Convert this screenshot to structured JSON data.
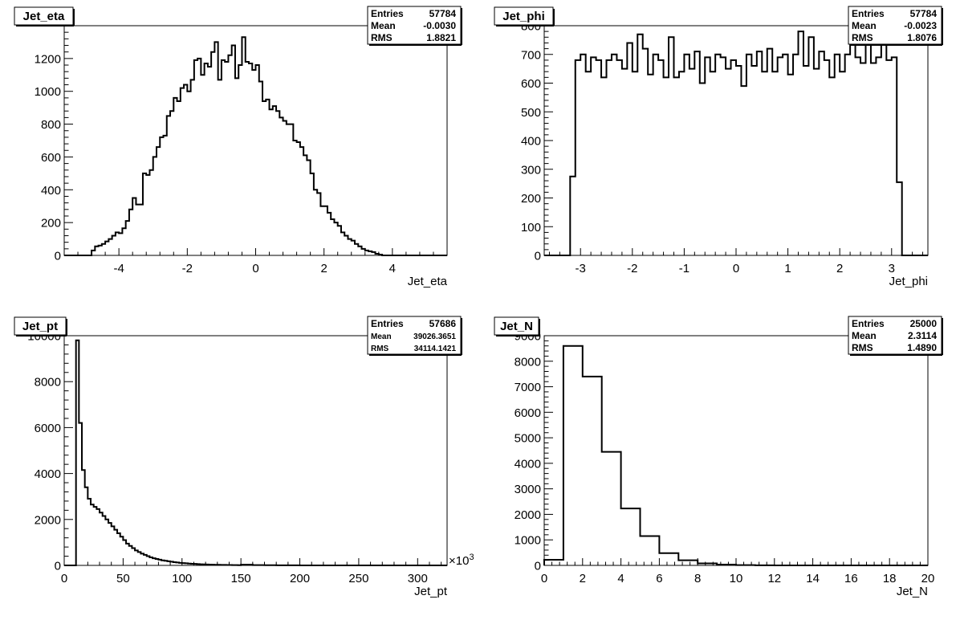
{
  "chart_data": [
    {
      "type": "histogram",
      "title": "Jet_eta",
      "xlabel": "Jet_eta",
      "ylabel": "",
      "xlim": [
        -5.6,
        5.6
      ],
      "ylim": [
        0,
        1400
      ],
      "xticks": [
        -4,
        -2,
        0,
        2,
        4
      ],
      "xtick_labels": [
        "-4",
        "-2",
        "0",
        "2",
        "4"
      ],
      "yticks": [
        0,
        200,
        400,
        600,
        800,
        1000,
        1200
      ],
      "ytick_labels": [
        "0",
        "200",
        "400",
        "600",
        "800",
        "1000",
        "1200"
      ],
      "x_multiplier": "",
      "bin_edges": [
        -5.6,
        -4.8,
        -4.7,
        -4.6,
        -4.5,
        -4.4,
        -4.3,
        -4.2,
        -4.1,
        -4.0,
        -3.9,
        -3.8,
        -3.7,
        -3.6,
        -3.5,
        -3.4,
        -3.3,
        -3.2,
        -3.1,
        -3.0,
        -2.9,
        -2.8,
        -2.7,
        -2.6,
        -2.5,
        -2.4,
        -2.3,
        -2.2,
        -2.1,
        -2.0,
        -1.9,
        -1.8,
        -1.7,
        -1.6,
        -1.5,
        -1.4,
        -1.3,
        -1.2,
        -1.1,
        -1.0,
        -0.9,
        -0.8,
        -0.7,
        -0.6,
        -0.5,
        -0.4,
        -0.3,
        -0.2,
        -0.1,
        0.0,
        0.1,
        0.2,
        0.3,
        0.4,
        0.5,
        0.6,
        0.7,
        0.8,
        0.9,
        1.0,
        1.1,
        1.2,
        1.3,
        1.4,
        1.5,
        1.6,
        1.7,
        1.8,
        1.9,
        2.0,
        2.1,
        2.2,
        2.3,
        2.4,
        2.5,
        2.6,
        2.7,
        2.8,
        2.9,
        3.0,
        3.1,
        3.2,
        3.3,
        3.4,
        3.5,
        3.6,
        3.7,
        3.8,
        3.9,
        4.0,
        4.1,
        4.2,
        4.3,
        4.4,
        4.5,
        4.6,
        4.7,
        4.8,
        4.9,
        5.0,
        5.6
      ],
      "bin_values": [
        0,
        30,
        55,
        60,
        70,
        85,
        100,
        120,
        140,
        135,
        165,
        210,
        280,
        350,
        310,
        310,
        500,
        490,
        520,
        600,
        660,
        720,
        730,
        850,
        880,
        960,
        940,
        1020,
        1040,
        1000,
        1070,
        1190,
        1200,
        1100,
        1170,
        1150,
        1240,
        1300,
        1070,
        1190,
        1180,
        1220,
        1280,
        1080,
        1160,
        1330,
        1180,
        1170,
        1130,
        1160,
        1060,
        940,
        950,
        890,
        910,
        880,
        840,
        820,
        800,
        800,
        700,
        690,
        660,
        610,
        580,
        500,
        400,
        380,
        300,
        300,
        260,
        220,
        200,
        180,
        140,
        120,
        100,
        90,
        70,
        55,
        40,
        30,
        25,
        20,
        10,
        5,
        0,
        0
      ],
      "stats": [
        {
          "label": "Entries",
          "value": "57784"
        },
        {
          "label": "Mean",
          "value": "-0.0030"
        },
        {
          "label": "RMS",
          "value": "1.8821"
        }
      ]
    },
    {
      "type": "histogram",
      "title": "Jet_phi",
      "xlabel": "Jet_phi",
      "ylabel": "",
      "xlim": [
        -3.7,
        3.7
      ],
      "ylim": [
        0,
        800
      ],
      "xticks": [
        -3,
        -2,
        -1,
        0,
        1,
        2,
        3
      ],
      "xtick_labels": [
        "-3",
        "-2",
        "-1",
        "0",
        "1",
        "2",
        "3"
      ],
      "yticks": [
        0,
        100,
        200,
        300,
        400,
        500,
        600,
        700,
        800
      ],
      "ytick_labels": [
        "0",
        "100",
        "200",
        "300",
        "400",
        "500",
        "600",
        "700",
        "800"
      ],
      "x_multiplier": "",
      "bin_edges": [
        -3.7,
        -3.2,
        -3.1,
        -3.0,
        -2.9,
        -2.8,
        -2.7,
        -2.6,
        -2.5,
        -2.4,
        -2.3,
        -2.2,
        -2.1,
        -2.0,
        -1.9,
        -1.8,
        -1.7,
        -1.6,
        -1.5,
        -1.4,
        -1.3,
        -1.2,
        -1.1,
        -1.0,
        -0.9,
        -0.8,
        -0.7,
        -0.6,
        -0.5,
        -0.4,
        -0.3,
        -0.2,
        -0.1,
        0.0,
        0.1,
        0.2,
        0.3,
        0.4,
        0.5,
        0.6,
        0.7,
        0.8,
        0.9,
        1.0,
        1.1,
        1.2,
        1.3,
        1.4,
        1.5,
        1.6,
        1.7,
        1.8,
        1.9,
        2.0,
        2.1,
        2.2,
        2.3,
        2.4,
        2.5,
        2.6,
        2.7,
        2.8,
        2.9,
        3.0,
        3.1,
        3.2,
        3.7
      ],
      "bin_values": [
        0,
        275,
        680,
        700,
        640,
        690,
        680,
        620,
        680,
        700,
        680,
        650,
        740,
        640,
        770,
        720,
        630,
        700,
        680,
        620,
        760,
        620,
        640,
        700,
        650,
        710,
        600,
        690,
        640,
        700,
        690,
        650,
        680,
        660,
        590,
        700,
        660,
        710,
        640,
        720,
        640,
        690,
        700,
        630,
        700,
        780,
        660,
        760,
        650,
        710,
        680,
        620,
        700,
        640,
        700,
        740,
        690,
        670,
        740,
        670,
        690,
        750,
        680,
        690,
        255,
        0
      ],
      "stats": [
        {
          "label": "Entries",
          "value": "57784"
        },
        {
          "label": "Mean",
          "value": "-0.0023"
        },
        {
          "label": "RMS",
          "value": "1.8076"
        }
      ]
    },
    {
      "type": "histogram",
      "title": "Jet_pt",
      "xlabel": "Jet_pt",
      "ylabel": "",
      "xlim": [
        0,
        325
      ],
      "ylim": [
        0,
        10000
      ],
      "xticks": [
        0,
        50,
        100,
        150,
        200,
        250,
        300
      ],
      "xtick_labels": [
        "0",
        "50",
        "100",
        "150",
        "200",
        "250",
        "300"
      ],
      "yticks": [
        0,
        2000,
        4000,
        6000,
        8000,
        10000
      ],
      "ytick_labels": [
        "0",
        "2000",
        "4000",
        "6000",
        "8000",
        "10000"
      ],
      "x_multiplier": "×10",
      "x_multiplier_exp": "3",
      "bin_edges": [
        0,
        10,
        12.5,
        15,
        17.5,
        20,
        22.5,
        25,
        27.5,
        30,
        32.5,
        35,
        37.5,
        40,
        42.5,
        45,
        47.5,
        50,
        52.5,
        55,
        57.5,
        60,
        62.5,
        65,
        67.5,
        70,
        72.5,
        75,
        77.5,
        80,
        82.5,
        85,
        87.5,
        90,
        92.5,
        95,
        97.5,
        100,
        102.5,
        105,
        107.5,
        110,
        112.5,
        115,
        117.5,
        120,
        122.5,
        125,
        127.5,
        130,
        132.5,
        135,
        137.5,
        140,
        142.5,
        145,
        147.5,
        150,
        160,
        170,
        180,
        190,
        200,
        325
      ],
      "bin_values": [
        0,
        9800,
        6200,
        4150,
        3400,
        2900,
        2650,
        2550,
        2450,
        2300,
        2150,
        2000,
        1850,
        1700,
        1550,
        1400,
        1250,
        1100,
        950,
        850,
        750,
        650,
        580,
        510,
        460,
        400,
        350,
        310,
        280,
        250,
        220,
        200,
        180,
        160,
        140,
        125,
        110,
        100,
        90,
        80,
        72,
        64,
        57,
        50,
        45,
        40,
        36,
        32,
        28,
        25,
        22,
        20,
        18,
        16,
        14,
        12,
        10,
        30,
        15,
        8,
        5,
        3,
        0
      ],
      "stats": [
        {
          "label": "Entries",
          "value": "57686"
        },
        {
          "label": "Mean",
          "value": "39026.3651"
        },
        {
          "label": "RMS",
          "value": "34114.1421"
        }
      ]
    },
    {
      "type": "histogram",
      "title": "Jet_N",
      "xlabel": "Jet_N",
      "ylabel": "",
      "xlim": [
        0,
        20
      ],
      "ylim": [
        0,
        9000
      ],
      "xticks": [
        0,
        2,
        4,
        6,
        8,
        10,
        12,
        14,
        16,
        18,
        20
      ],
      "xtick_labels": [
        "0",
        "2",
        "4",
        "6",
        "8",
        "10",
        "12",
        "14",
        "16",
        "18",
        "20"
      ],
      "yticks": [
        0,
        1000,
        2000,
        3000,
        4000,
        5000,
        6000,
        7000,
        8000,
        9000
      ],
      "ytick_labels": [
        "0",
        "1000",
        "2000",
        "3000",
        "4000",
        "5000",
        "6000",
        "7000",
        "8000",
        "9000"
      ],
      "x_multiplier": "",
      "bin_edges": [
        0,
        1,
        2,
        3,
        4,
        5,
        6,
        7,
        8,
        9,
        10,
        11,
        12,
        13,
        14,
        15,
        16,
        17,
        18,
        19,
        20
      ],
      "bin_values": [
        220,
        8600,
        7400,
        4450,
        2230,
        1150,
        480,
        200,
        80,
        30,
        10,
        5,
        0,
        0,
        0,
        0,
        0,
        0,
        0,
        0
      ],
      "stats": [
        {
          "label": "Entries",
          "value": "25000"
        },
        {
          "label": "Mean",
          "value": "2.3114"
        },
        {
          "label": "RMS",
          "value": "1.4890"
        }
      ]
    }
  ]
}
